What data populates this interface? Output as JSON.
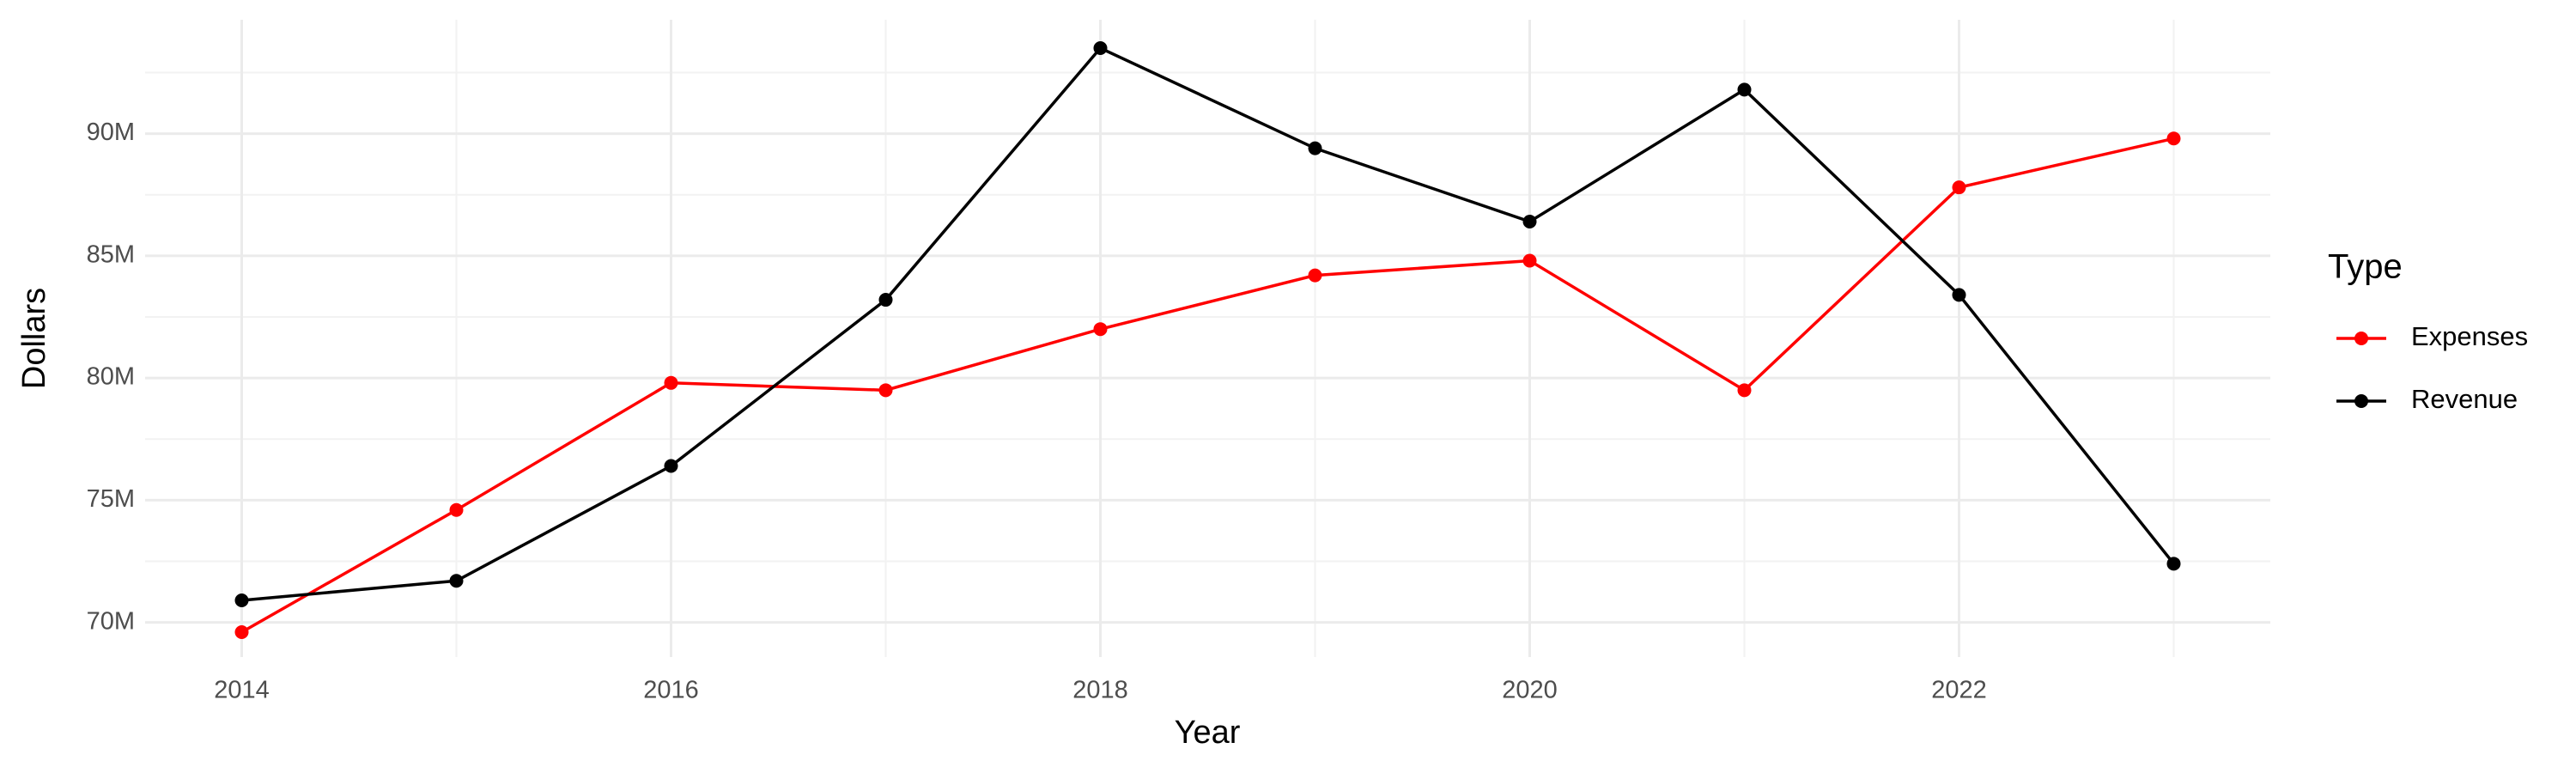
{
  "chart_data": {
    "type": "line",
    "x_label": "Year",
    "y_label": "Dollars",
    "legend_title": "Type",
    "x": [
      2014,
      2015,
      2016,
      2017,
      2018,
      2019,
      2020,
      2021,
      2022,
      2023
    ],
    "series": [
      {
        "name": "Expenses",
        "color": "#ff0000",
        "values": [
          69600000,
          74600000,
          79800000,
          79500000,
          82000000,
          84200000,
          84800000,
          79500000,
          87800000,
          89800000
        ]
      },
      {
        "name": "Revenue",
        "color": "#000000",
        "values": [
          70900000,
          71700000,
          76400000,
          83200000,
          93500000,
          89400000,
          86400000,
          91800000,
          83400000,
          72400000
        ]
      }
    ],
    "xlim": [
      2013.55,
      2023.45
    ],
    "xticks": [
      2014,
      2016,
      2018,
      2020,
      2022
    ],
    "ylim": [
      68580000,
      94660000
    ],
    "yticks": [
      {
        "value": 70000000,
        "label": "70M"
      },
      {
        "value": 75000000,
        "label": "75M"
      },
      {
        "value": 80000000,
        "label": "80M"
      },
      {
        "value": 85000000,
        "label": "85M"
      },
      {
        "value": 90000000,
        "label": "90M"
      }
    ],
    "grid": true,
    "legend": "right"
  }
}
